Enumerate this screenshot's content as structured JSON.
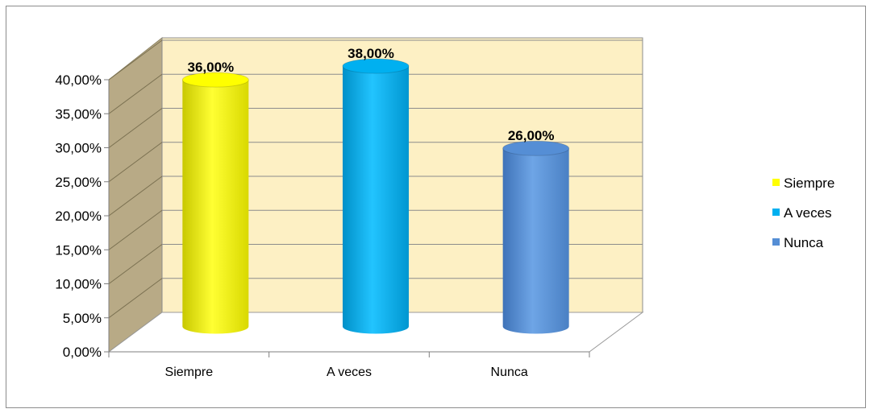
{
  "chart_data": {
    "type": "bar",
    "categories": [
      "Siempre",
      "A veces",
      "Nunca"
    ],
    "values": [
      36,
      38,
      26
    ],
    "data_labels": [
      "36,00%",
      "38,00%",
      "26,00%"
    ],
    "colors": [
      "#ffff00",
      "#00b0f0",
      "#558ed5"
    ],
    "y_ticks": [
      "0,00%",
      "5,00%",
      "10,00%",
      "15,00%",
      "20,00%",
      "25,00%",
      "30,00%",
      "35,00%",
      "40,00%"
    ],
    "ylim": [
      0,
      40
    ],
    "legend": {
      "position": "right",
      "entries": [
        "Siempre",
        "A veces",
        "Nunca"
      ]
    },
    "grid": true,
    "style": "3d-cylinder",
    "wall_color": "#fdf0c4",
    "side_wall_color": "#b8aa86"
  }
}
